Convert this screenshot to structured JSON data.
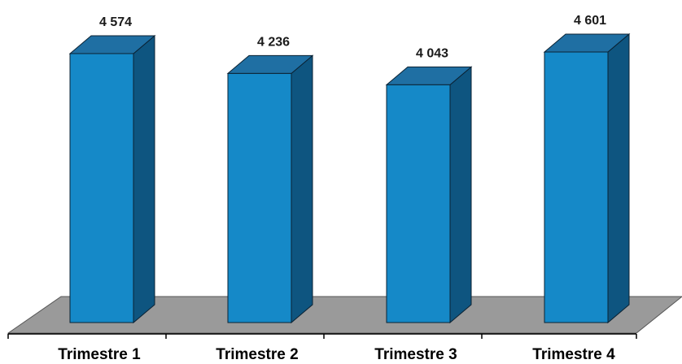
{
  "chart_data": {
    "type": "bar",
    "style": "3d-column",
    "categories": [
      "Trimestre 1",
      "Trimestre 2",
      "Trimestre 3",
      "Trimestre 4"
    ],
    "values": [
      4574,
      4236,
      4043,
      4601
    ],
    "value_labels": [
      "4 574",
      "4 236",
      "4 043",
      "4 601"
    ],
    "title": "",
    "xlabel": "",
    "ylabel": "",
    "ylim": [
      0,
      4601
    ],
    "grid": false,
    "legend": "none",
    "colors": {
      "bar_front": "#1589c8",
      "bar_top": "#1f6fa3",
      "bar_side": "#0e5580",
      "bar_outline": "#0b2233",
      "floor": "#9a9a9a",
      "floor_outline": "#555555",
      "axis": "#000000"
    }
  }
}
